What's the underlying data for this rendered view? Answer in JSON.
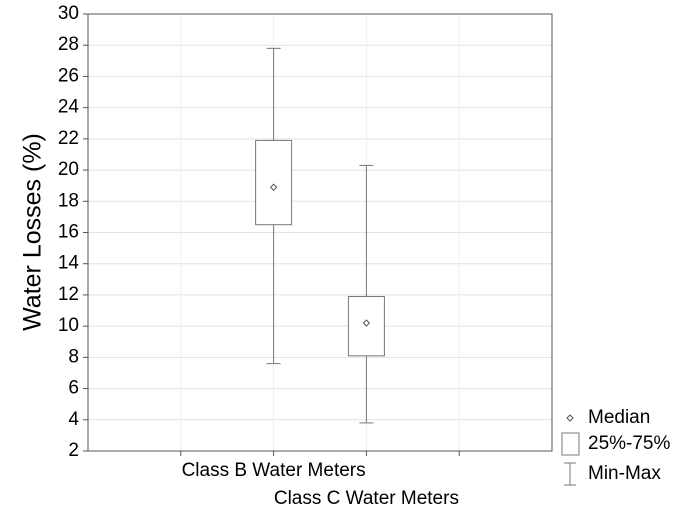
{
  "chart_data": {
    "type": "box",
    "title": "",
    "xlabel": "",
    "ylabel": "Water Losses (%)",
    "ylim": [
      2,
      30
    ],
    "yticks": [
      2,
      4,
      6,
      8,
      10,
      12,
      14,
      16,
      18,
      20,
      22,
      24,
      26,
      28,
      30
    ],
    "grid": true,
    "categories": [
      "Class B Water Meters",
      "Class C Water Meters"
    ],
    "boxes": [
      {
        "category": "Class B Water Meters",
        "min": 7.6,
        "q1": 16.5,
        "median": 18.9,
        "q3": 21.9,
        "max": 27.8
      },
      {
        "category": "Class C Water Meters",
        "min": 3.8,
        "q1": 8.1,
        "median": 10.2,
        "q3": 11.9,
        "max": 20.3
      }
    ],
    "legend": {
      "position": "bottom-right",
      "items": [
        {
          "label": "Median",
          "symbol": "diamond-icon"
        },
        {
          "label": "25%-75%",
          "symbol": "box-icon"
        },
        {
          "label": "Min-Max",
          "symbol": "whisker-icon"
        }
      ]
    }
  }
}
